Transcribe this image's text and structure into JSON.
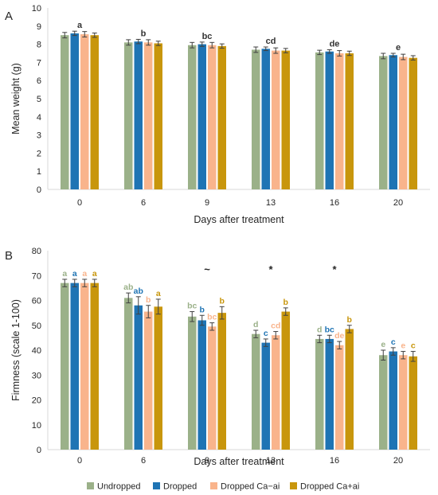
{
  "panels": [
    {
      "letter": "A",
      "chart_data": {
        "type": "bar",
        "categories": [
          "0",
          "6",
          "9",
          "13",
          "16",
          "20"
        ],
        "xlabel": "Days after treatment",
        "ylabel": "Mean weight (g)",
        "ylim": [
          0,
          10
        ],
        "yticks": [
          0,
          1,
          2,
          3,
          4,
          5,
          6,
          7,
          8,
          9,
          10
        ],
        "grid": false,
        "series": [
          {
            "name": "Undropped",
            "color": "#9bb189",
            "values": [
              8.5,
              8.1,
              7.95,
              7.7,
              7.55,
              7.35
            ],
            "errors": [
              0.15,
              0.15,
              0.15,
              0.15,
              0.12,
              0.15
            ],
            "labels": [
              "",
              "",
              "",
              "",
              "",
              ""
            ]
          },
          {
            "name": "Dropped",
            "color": "#1f74b4",
            "values": [
              8.6,
              8.15,
              8.0,
              7.75,
              7.6,
              7.4
            ],
            "errors": [
              0.12,
              0.12,
              0.12,
              0.1,
              0.1,
              0.1
            ],
            "labels": [
              "",
              "",
              "",
              "",
              "",
              ""
            ]
          },
          {
            "name": "Dropped Ca−ai",
            "color": "#f9b48c",
            "values": [
              8.55,
              8.1,
              7.95,
              7.65,
              7.5,
              7.3
            ],
            "errors": [
              0.15,
              0.15,
              0.15,
              0.15,
              0.15,
              0.15
            ],
            "labels": [
              "",
              "",
              "",
              "",
              "",
              ""
            ]
          },
          {
            "name": "Dropped Ca+ai",
            "color": "#c8960c",
            "values": [
              8.5,
              8.05,
              7.9,
              7.65,
              7.5,
              7.25
            ],
            "errors": [
              0.12,
              0.12,
              0.12,
              0.12,
              0.12,
              0.12
            ],
            "labels": [
              "",
              "",
              "",
              "",
              "",
              ""
            ]
          }
        ],
        "group_labels": [
          "a",
          "b",
          "bc",
          "cd",
          "de",
          "e"
        ],
        "group_label_color": "#333333",
        "markers": [
          "",
          "",
          "",
          "",
          "",
          ""
        ]
      }
    },
    {
      "letter": "B",
      "chart_data": {
        "type": "bar",
        "categories": [
          "0",
          "6",
          "9",
          "13",
          "16",
          "20"
        ],
        "xlabel": "Days after treatment",
        "ylabel": "Firmness (scale 1-100)",
        "ylim": [
          0,
          80
        ],
        "yticks": [
          0,
          10,
          20,
          30,
          40,
          50,
          60,
          70,
          80
        ],
        "grid": false,
        "series": [
          {
            "name": "Undropped",
            "color": "#9bb189",
            "values": [
              67,
              61,
              53.5,
              46.5,
              44.5,
              38
            ],
            "errors": [
              1.5,
              2,
              2,
              1.5,
              1.5,
              2
            ],
            "labels": [
              "a",
              "ab",
              "bc",
              "d",
              "d",
              "e"
            ]
          },
          {
            "name": "Dropped",
            "color": "#1f74b4",
            "values": [
              67,
              58,
              52,
              43,
              44.5,
              39.5
            ],
            "errors": [
              1.5,
              3.5,
              2,
              1.5,
              1.5,
              1.5
            ],
            "labels": [
              "a",
              "ab",
              "b",
              "c",
              "bc",
              "c"
            ]
          },
          {
            "name": "Dropped Ca−ai",
            "color": "#f9b48c",
            "values": [
              67,
              55.5,
              49.5,
              46,
              42,
              38
            ],
            "errors": [
              1.5,
              2.5,
              1.5,
              1.5,
              1.5,
              1.5
            ],
            "labels": [
              "a",
              "b",
              "bc",
              "cd",
              "de",
              "e"
            ]
          },
          {
            "name": "Dropped Ca+ai",
            "color": "#c8960c",
            "values": [
              67,
              57.5,
              55,
              55.5,
              48.5,
              37.5
            ],
            "errors": [
              1.5,
              3,
              2.5,
              1.5,
              1.5,
              2
            ],
            "labels": [
              "a",
              "a",
              "b",
              "b",
              "b",
              "c"
            ]
          }
        ],
        "group_labels": [
          "",
          "",
          "",
          "",
          "",
          ""
        ],
        "markers": [
          "",
          "",
          "~",
          "*",
          "*",
          ""
        ]
      }
    }
  ],
  "legend": {
    "placement": "bottom",
    "items": [
      {
        "name": "Undropped",
        "color": "#9bb189"
      },
      {
        "name": "Dropped",
        "color": "#1f74b4"
      },
      {
        "name": "Dropped Ca−ai",
        "color": "#f9b48c"
      },
      {
        "name": "Dropped Ca+ai",
        "color": "#c8960c"
      }
    ]
  }
}
